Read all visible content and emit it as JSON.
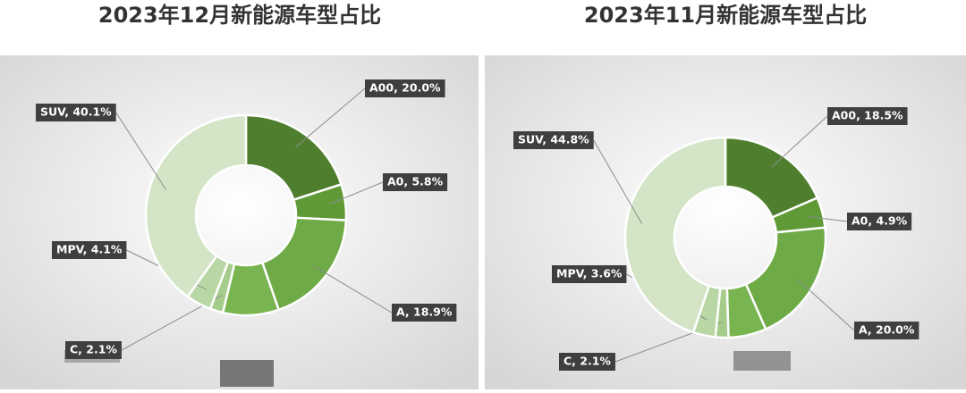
{
  "chart_data": [
    {
      "type": "pie",
      "title": "2023年12月新能源车型占比",
      "categories": [
        "A00",
        "A0",
        "A",
        null,
        "C",
        "MPV",
        "SUV"
      ],
      "values": [
        20.0,
        5.8,
        18.9,
        9.0,
        2.1,
        4.1,
        40.1
      ],
      "value_labels": [
        "A00, 20.0%",
        "A0, 5.8%",
        "A, 18.9%",
        null,
        "C, 2.1%",
        "MPV, 4.1%",
        "SUV, 40.1%"
      ],
      "colors": [
        "#4f7f2e",
        "#5f9a37",
        "#6eaa45",
        "#78b44f",
        "#a6cc8c",
        "#b9d7a4",
        "#d3e5c6"
      ]
    },
    {
      "type": "pie",
      "title": "2023年11月新能源车型占比",
      "categories": [
        "A00",
        "A0",
        "A",
        null,
        "C",
        "MPV",
        "SUV"
      ],
      "values": [
        18.5,
        4.9,
        20.0,
        6.1,
        2.1,
        3.6,
        44.8
      ],
      "value_labels": [
        "A00, 18.5%",
        "A0, 4.9%",
        "A, 20.0%",
        null,
        "C, 2.1%",
        "MPV, 3.6%",
        "SUV, 44.8%"
      ],
      "colors": [
        "#4f7f2e",
        "#5f9a37",
        "#6eaa45",
        "#78b44f",
        "#a6cc8c",
        "#b9d7a4",
        "#d3e5c6"
      ]
    }
  ]
}
